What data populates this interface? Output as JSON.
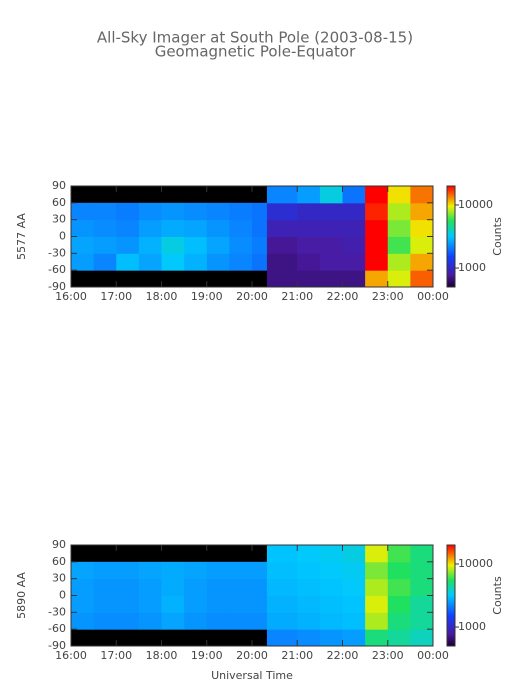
{
  "chart_data": [
    {
      "type": "heatmap",
      "title": "All-Sky Imager at South Pole (2003-08-15)",
      "subtitle": "Geomagnetic Pole-Equator",
      "ylabel": "5577 AA",
      "xlim": [
        16,
        24
      ],
      "xticks": [
        {
          "value": 16,
          "label": "16:00"
        },
        {
          "value": 17,
          "label": "17:00"
        },
        {
          "value": 18,
          "label": "18:00"
        },
        {
          "value": 19,
          "label": "19:00"
        },
        {
          "value": 20,
          "label": "20:00"
        },
        {
          "value": 21,
          "label": "21:00"
        },
        {
          "value": 22,
          "label": "22:00"
        },
        {
          "value": 23,
          "label": "23:00"
        },
        {
          "value": 24,
          "label": "00:00"
        }
      ],
      "ylim": [
        -90,
        90
      ],
      "yticks": [
        -90,
        -60,
        -30,
        0,
        30,
        60,
        90
      ],
      "xbins": [
        16,
        16.5,
        17,
        17.5,
        18,
        18.5,
        19,
        19.5,
        20,
        20.33,
        21,
        21.5,
        22,
        22.5,
        23,
        23.5,
        24
      ],
      "ybins": [
        -90,
        -60,
        -30,
        0,
        30,
        60,
        90
      ],
      "values": [
        [
          null,
          null,
          null,
          null,
          null,
          null,
          null,
          null,
          null,
          700,
          700,
          700,
          700,
          12000,
          9000,
          15000
        ],
        [
          2500,
          2200,
          3000,
          2600,
          3200,
          2800,
          2400,
          2200,
          2000,
          700,
          750,
          800,
          800,
          20000,
          8000,
          12000
        ],
        [
          2600,
          2500,
          2400,
          2800,
          3500,
          3000,
          2600,
          2300,
          2100,
          750,
          800,
          800,
          850,
          20000,
          6000,
          9000
        ],
        [
          2400,
          2300,
          2200,
          2500,
          2700,
          2600,
          2400,
          2200,
          2000,
          900,
          900,
          900,
          900,
          20000,
          7000,
          10000
        ],
        [
          2200,
          2200,
          2100,
          2300,
          2400,
          2300,
          2200,
          2100,
          2000,
          1100,
          1000,
          1000,
          1000,
          18000,
          8000,
          12000
        ],
        [
          null,
          null,
          null,
          null,
          null,
          null,
          null,
          null,
          null,
          2200,
          2500,
          3500,
          2000,
          20000,
          10000,
          14000
        ]
      ],
      "clim": [
        500,
        20000
      ],
      "cticks": [
        1000,
        10000
      ],
      "clabel": "Counts"
    },
    {
      "type": "heatmap",
      "ylabel": "5890 AA",
      "xlabel": "Universal Time",
      "xlim": [
        16,
        24
      ],
      "xticks": [
        {
          "value": 16,
          "label": "16:00"
        },
        {
          "value": 17,
          "label": "17:00"
        },
        {
          "value": 18,
          "label": "18:00"
        },
        {
          "value": 19,
          "label": "19:00"
        },
        {
          "value": 20,
          "label": "20:00"
        },
        {
          "value": 21,
          "label": "21:00"
        },
        {
          "value": 22,
          "label": "22:00"
        },
        {
          "value": 23,
          "label": "23:00"
        },
        {
          "value": 24,
          "label": "00:00"
        }
      ],
      "ylim": [
        -90,
        90
      ],
      "yticks": [
        -90,
        -60,
        -30,
        0,
        30,
        60,
        90
      ],
      "xbins": [
        16,
        16.5,
        17,
        17.5,
        18,
        18.5,
        19,
        19.5,
        20,
        20.33,
        21,
        21.5,
        22,
        22.5,
        23,
        23.5,
        24
      ],
      "ybins": [
        -90,
        -60,
        -30,
        0,
        30,
        60,
        90
      ],
      "values": [
        [
          null,
          null,
          null,
          null,
          null,
          null,
          null,
          null,
          null,
          2200,
          2300,
          2400,
          2500,
          5000,
          4500,
          4000
        ],
        [
          2400,
          2300,
          2300,
          2400,
          2600,
          2400,
          2300,
          2300,
          2300,
          2700,
          2800,
          2900,
          3000,
          8000,
          5000,
          4500
        ],
        [
          2500,
          2400,
          2400,
          2500,
          2800,
          2500,
          2400,
          2400,
          2400,
          2800,
          2900,
          3000,
          3100,
          9000,
          5500,
          4500
        ],
        [
          2500,
          2400,
          2400,
          2500,
          2700,
          2500,
          2400,
          2400,
          2400,
          2900,
          3000,
          3100,
          3200,
          8000,
          6000,
          5000
        ],
        [
          2600,
          2500,
          2500,
          2600,
          2700,
          2600,
          2500,
          2500,
          2500,
          3000,
          3100,
          3200,
          3300,
          7000,
          5500,
          5000
        ],
        [
          null,
          null,
          null,
          null,
          null,
          null,
          null,
          null,
          null,
          3100,
          3200,
          3300,
          3500,
          9000,
          6000,
          5000
        ]
      ],
      "clim": [
        500,
        20000
      ],
      "cticks": [
        1000,
        10000
      ],
      "clabel": "Counts"
    }
  ]
}
